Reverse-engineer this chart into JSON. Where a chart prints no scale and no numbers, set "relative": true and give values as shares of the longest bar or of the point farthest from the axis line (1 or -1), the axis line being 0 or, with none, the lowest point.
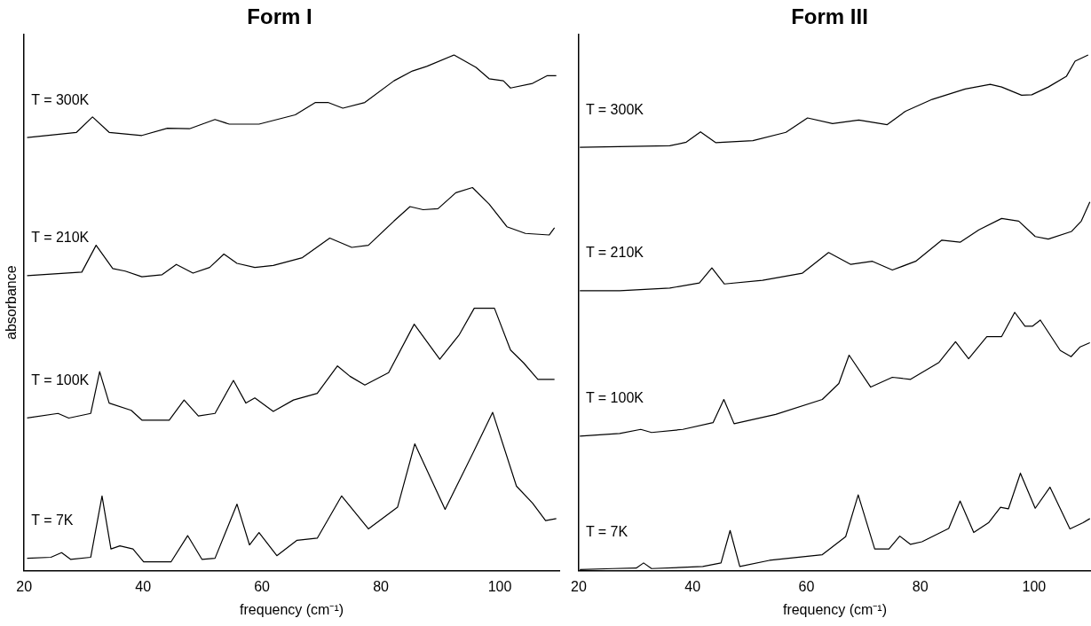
{
  "chart_data": [
    {
      "type": "line",
      "title": "Form I",
      "xlabel": "frequency (cm⁻¹)",
      "ylabel": "absorbance",
      "relative": true,
      "xlim": [
        20,
        110
      ],
      "xticks": [
        20,
        40,
        60,
        80,
        100
      ],
      "tick_labels": "x",
      "grid": false,
      "legend": false,
      "marker": "none",
      "line_style": "solid",
      "series": [
        {
          "name": "T = 300K",
          "color": "#000000",
          "x": [
            20.5,
            28.8,
            31.5,
            34.3,
            39.8,
            44.1,
            47.8,
            52.1,
            54.5,
            59.5,
            65.6,
            69.0,
            71.1,
            73.6,
            77.3,
            82.2,
            85.3,
            87.7,
            92.3,
            96.0,
            98.2,
            100.6,
            101.8,
            105.5,
            108.0,
            109.5
          ],
          "values": [
            0.84,
            0.85,
            0.88,
            0.85,
            0.844,
            0.858,
            0.857,
            0.875,
            0.866,
            0.866,
            0.884,
            0.908,
            0.908,
            0.897,
            0.908,
            0.95,
            0.969,
            0.978,
            1.0,
            0.976,
            0.954,
            0.95,
            0.936,
            0.945,
            0.96,
            0.96
          ]
        },
        {
          "name": "T = 210K",
          "color": "#000000",
          "x": [
            20.5,
            29.7,
            32.1,
            34.9,
            37.0,
            39.8,
            43.2,
            45.6,
            48.4,
            51.2,
            53.6,
            55.8,
            58.8,
            61.9,
            66.8,
            71.4,
            75.1,
            77.9,
            82.2,
            84.9,
            87.1,
            89.6,
            92.6,
            95.4,
            98.2,
            101.2,
            104.3,
            108.3,
            109.2
          ],
          "values": [
            0.572,
            0.579,
            0.631,
            0.586,
            0.581,
            0.57,
            0.574,
            0.594,
            0.577,
            0.588,
            0.614,
            0.596,
            0.588,
            0.592,
            0.607,
            0.645,
            0.627,
            0.631,
            0.678,
            0.706,
            0.7,
            0.702,
            0.733,
            0.743,
            0.711,
            0.667,
            0.654,
            0.651,
            0.665
          ]
        },
        {
          "name": "T = 100K",
          "color": "#000000",
          "x": [
            20.5,
            25.7,
            27.5,
            31.2,
            32.7,
            34.3,
            38.0,
            39.8,
            44.4,
            46.9,
            49.3,
            52.1,
            55.2,
            57.3,
            58.8,
            61.9,
            65.3,
            69.3,
            72.7,
            74.8,
            77.3,
            81.3,
            85.6,
            89.9,
            93.2,
            95.7,
            99.1,
            101.8,
            104.0,
            106.4,
            109.2
          ],
          "values": [
            0.296,
            0.305,
            0.296,
            0.305,
            0.386,
            0.325,
            0.311,
            0.292,
            0.292,
            0.331,
            0.3,
            0.305,
            0.369,
            0.325,
            0.335,
            0.309,
            0.331,
            0.344,
            0.397,
            0.377,
            0.36,
            0.384,
            0.478,
            0.41,
            0.458,
            0.509,
            0.509,
            0.428,
            0.403,
            0.371,
            0.371
          ]
        },
        {
          "name": "T = 7K",
          "color": "#000000",
          "x": [
            20.5,
            24.5,
            26.3,
            27.8,
            31.2,
            33.1,
            34.6,
            36.1,
            38.3,
            40.1,
            44.7,
            47.5,
            49.9,
            52.1,
            55.8,
            57.9,
            59.5,
            62.5,
            65.9,
            69.3,
            73.4,
            77.9,
            82.8,
            85.7,
            90.8,
            95.7,
            98.8,
            102.8,
            105.5,
            107.7,
            109.5
          ],
          "values": [
            0.024,
            0.026,
            0.035,
            0.022,
            0.026,
            0.145,
            0.042,
            0.048,
            0.042,
            0.017,
            0.017,
            0.068,
            0.022,
            0.024,
            0.129,
            0.05,
            0.074,
            0.029,
            0.059,
            0.063,
            0.145,
            0.081,
            0.123,
            0.246,
            0.119,
            0.233,
            0.307,
            0.164,
            0.131,
            0.097,
            0.101
          ]
        }
      ]
    },
    {
      "type": "line",
      "title": "Form III",
      "xlabel": "frequency (cm⁻¹)",
      "relative": true,
      "xlim": [
        20,
        110
      ],
      "xticks": [
        20,
        40,
        60,
        80,
        100
      ],
      "tick_labels": "x",
      "grid": false,
      "legend": false,
      "marker": "none",
      "line_style": "solid",
      "series": [
        {
          "name": "T = 300K",
          "color": "#000000",
          "x": [
            20.2,
            36.0,
            38.9,
            41.4,
            44.1,
            50.6,
            56.4,
            60.2,
            64.6,
            69.2,
            74.2,
            77.4,
            82.1,
            87.9,
            92.3,
            94.3,
            97.8,
            99.6,
            102.5,
            105.7,
            107.2,
            109.5
          ],
          "values": [
            0.821,
            0.824,
            0.831,
            0.851,
            0.83,
            0.834,
            0.85,
            0.878,
            0.867,
            0.874,
            0.865,
            0.891,
            0.914,
            0.934,
            0.943,
            0.938,
            0.922,
            0.923,
            0.938,
            0.959,
            0.988,
            1.0
          ]
        },
        {
          "name": "T = 210K",
          "color": "#000000",
          "x": [
            20.2,
            27.2,
            36.0,
            41.2,
            43.4,
            45.6,
            52.3,
            59.3,
            63.9,
            67.8,
            71.6,
            75.1,
            79.2,
            83.8,
            87.0,
            90.3,
            94.3,
            97.3,
            100.2,
            102.5,
            106.6,
            108.3,
            109.8
          ],
          "values": [
            0.543,
            0.543,
            0.548,
            0.558,
            0.587,
            0.556,
            0.563,
            0.577,
            0.617,
            0.594,
            0.6,
            0.583,
            0.6,
            0.641,
            0.637,
            0.661,
            0.683,
            0.678,
            0.648,
            0.643,
            0.658,
            0.678,
            0.715
          ]
        },
        {
          "name": "T = 100K",
          "color": "#000000",
          "x": [
            20.2,
            27.2,
            30.9,
            32.8,
            38.3,
            43.6,
            45.5,
            47.3,
            54.6,
            62.8,
            65.7,
            67.5,
            71.3,
            75.1,
            78.3,
            83.3,
            86.2,
            88.5,
            91.7,
            94.3,
            96.6,
            98.4,
            99.7,
            101.1,
            104.6,
            106.5,
            108.1,
            109.8
          ],
          "values": [
            0.261,
            0.266,
            0.274,
            0.268,
            0.274,
            0.287,
            0.332,
            0.285,
            0.303,
            0.332,
            0.363,
            0.418,
            0.356,
            0.375,
            0.371,
            0.404,
            0.444,
            0.411,
            0.454,
            0.454,
            0.501,
            0.474,
            0.474,
            0.486,
            0.427,
            0.415,
            0.434,
            0.442
          ]
        },
        {
          "name": "T = 7K",
          "color": "#000000",
          "x": [
            20.2,
            26.0,
            30.1,
            31.4,
            32.8,
            41.8,
            45.0,
            46.6,
            48.3,
            53.5,
            62.8,
            66.9,
            69.1,
            72.0,
            74.5,
            76.4,
            78.3,
            80.3,
            85.0,
            87.0,
            89.4,
            92.0,
            94.1,
            95.5,
            97.6,
            100.2,
            102.8,
            106.3,
            108.6,
            109.8
          ],
          "values": [
            0.002,
            0.004,
            0.005,
            0.015,
            0.004,
            0.008,
            0.015,
            0.078,
            0.008,
            0.02,
            0.031,
            0.066,
            0.147,
            0.042,
            0.042,
            0.067,
            0.051,
            0.056,
            0.082,
            0.135,
            0.074,
            0.093,
            0.123,
            0.12,
            0.189,
            0.121,
            0.162,
            0.081,
            0.093,
            0.101
          ]
        }
      ]
    }
  ]
}
